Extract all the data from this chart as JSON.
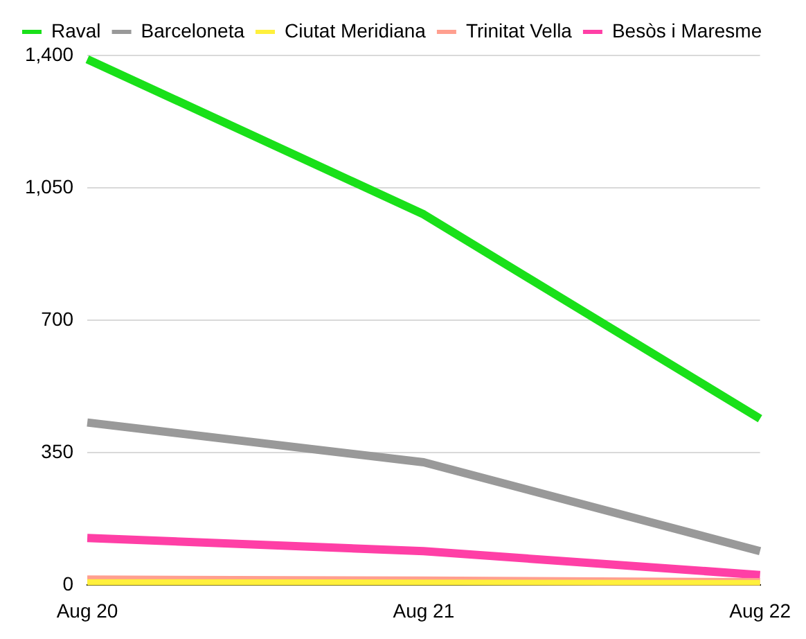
{
  "chart_data": {
    "type": "line",
    "categories": [
      "Aug 20",
      "Aug 21",
      "Aug 22"
    ],
    "series": [
      {
        "name": "Raval",
        "color": "#19e019",
        "values": [
          1390,
          980,
          440
        ]
      },
      {
        "name": "Barceloneta",
        "color": "#999999",
        "values": [
          430,
          325,
          90
        ]
      },
      {
        "name": "Ciutat Meridiana",
        "color": "#fff03c",
        "values": [
          5,
          4,
          3
        ]
      },
      {
        "name": "Trinitat Vella",
        "color": "#ff9f8f",
        "values": [
          15,
          12,
          8
        ]
      },
      {
        "name": "Besòs i Maresme",
        "color": "#ff3fa6",
        "values": [
          125,
          90,
          27
        ]
      }
    ],
    "ylim": [
      0,
      1400
    ],
    "yticks": [
      0,
      {
        "value": 350,
        "label": "350"
      },
      {
        "value": 700,
        "label": "700"
      },
      {
        "value": 1050,
        "label": "1,050"
      },
      {
        "value": 1400,
        "label": "1,400"
      }
    ],
    "grid": "y",
    "legend": "top",
    "marker": "none",
    "line_style": "solid"
  }
}
